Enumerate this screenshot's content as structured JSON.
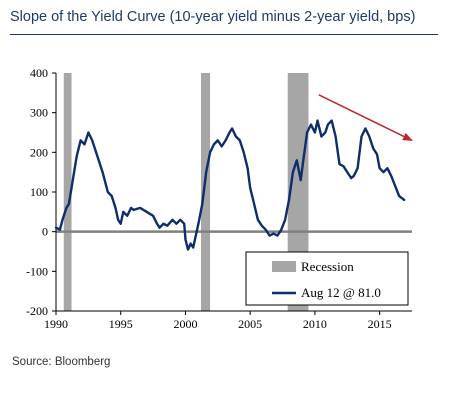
{
  "header": {
    "title": "Slope of the Yield Curve (10-year yield minus 2-year yield, bps)"
  },
  "footer": {
    "source": "Source: Bloomberg"
  },
  "chart_data": {
    "type": "line",
    "title": "Slope of the Yield Curve (10-year yield minus 2-year yield, bps)",
    "xlabel": "",
    "ylabel": "",
    "xlim": [
      1990,
      2017.5
    ],
    "ylim": [
      -200,
      400
    ],
    "x_ticks": [
      "1990",
      "1995",
      "2000",
      "2005",
      "2010",
      "2015"
    ],
    "y_ticks": [
      "400",
      "300",
      "200",
      "100",
      "0",
      "-100",
      "-200"
    ],
    "grid": false,
    "legend_position": "bottom-right",
    "colors": {
      "series": "#0f2d6b",
      "recession": "#a6a6a6",
      "arrow": "#c0282d",
      "zero_line": "#808080"
    },
    "recessions": [
      {
        "start": 1990.6,
        "end": 1991.2
      },
      {
        "start": 2001.2,
        "end": 2001.9
      },
      {
        "start": 2007.9,
        "end": 2009.5
      }
    ],
    "legend": {
      "recession_label": "Recession",
      "series_label": "Aug 12 @ 81.0"
    },
    "trend_arrow": {
      "x_start": 2010.3,
      "y_start": 345,
      "x_end": 2017.5,
      "y_end": 230
    },
    "series": [
      {
        "name": "Aug 12 @ 81.0",
        "points": [
          [
            1990.0,
            10
          ],
          [
            1990.3,
            5
          ],
          [
            1990.5,
            30
          ],
          [
            1990.8,
            60
          ],
          [
            1991.0,
            70
          ],
          [
            1991.3,
            130
          ],
          [
            1991.6,
            190
          ],
          [
            1991.9,
            230
          ],
          [
            1992.2,
            220
          ],
          [
            1992.5,
            250
          ],
          [
            1992.8,
            230
          ],
          [
            1993.0,
            210
          ],
          [
            1993.3,
            180
          ],
          [
            1993.6,
            150
          ],
          [
            1994.0,
            100
          ],
          [
            1994.3,
            90
          ],
          [
            1994.6,
            60
          ],
          [
            1994.8,
            30
          ],
          [
            1995.0,
            20
          ],
          [
            1995.2,
            50
          ],
          [
            1995.5,
            40
          ],
          [
            1995.8,
            60
          ],
          [
            1996.0,
            55
          ],
          [
            1996.5,
            60
          ],
          [
            1997.0,
            50
          ],
          [
            1997.5,
            40
          ],
          [
            1997.8,
            20
          ],
          [
            1998.0,
            10
          ],
          [
            1998.3,
            20
          ],
          [
            1998.6,
            15
          ],
          [
            1999.0,
            30
          ],
          [
            1999.3,
            20
          ],
          [
            1999.6,
            30
          ],
          [
            1999.9,
            20
          ],
          [
            2000.0,
            -20
          ],
          [
            2000.2,
            -45
          ],
          [
            2000.4,
            -30
          ],
          [
            2000.6,
            -40
          ],
          [
            2000.8,
            -10
          ],
          [
            2001.0,
            20
          ],
          [
            2001.3,
            70
          ],
          [
            2001.6,
            150
          ],
          [
            2001.9,
            200
          ],
          [
            2002.2,
            220
          ],
          [
            2002.5,
            230
          ],
          [
            2002.8,
            215
          ],
          [
            2003.1,
            230
          ],
          [
            2003.4,
            250
          ],
          [
            2003.6,
            260
          ],
          [
            2003.9,
            240
          ],
          [
            2004.2,
            230
          ],
          [
            2004.5,
            200
          ],
          [
            2004.8,
            160
          ],
          [
            2005.0,
            110
          ],
          [
            2005.3,
            70
          ],
          [
            2005.6,
            30
          ],
          [
            2005.9,
            15
          ],
          [
            2006.2,
            5
          ],
          [
            2006.5,
            -10
          ],
          [
            2006.8,
            -5
          ],
          [
            2007.1,
            -10
          ],
          [
            2007.4,
            5
          ],
          [
            2007.7,
            30
          ],
          [
            2008.0,
            80
          ],
          [
            2008.3,
            150
          ],
          [
            2008.6,
            180
          ],
          [
            2008.9,
            130
          ],
          [
            2009.1,
            180
          ],
          [
            2009.4,
            250
          ],
          [
            2009.7,
            270
          ],
          [
            2010.0,
            250
          ],
          [
            2010.2,
            280
          ],
          [
            2010.5,
            240
          ],
          [
            2010.8,
            250
          ],
          [
            2011.0,
            270
          ],
          [
            2011.3,
            280
          ],
          [
            2011.6,
            240
          ],
          [
            2011.9,
            170
          ],
          [
            2012.2,
            165
          ],
          [
            2012.5,
            150
          ],
          [
            2012.8,
            135
          ],
          [
            2013.0,
            140
          ],
          [
            2013.3,
            160
          ],
          [
            2013.6,
            240
          ],
          [
            2013.9,
            260
          ],
          [
            2014.2,
            240
          ],
          [
            2014.5,
            210
          ],
          [
            2014.8,
            195
          ],
          [
            2015.0,
            160
          ],
          [
            2015.3,
            150
          ],
          [
            2015.6,
            160
          ],
          [
            2015.9,
            140
          ],
          [
            2016.2,
            115
          ],
          [
            2016.5,
            90
          ],
          [
            2016.7,
            85
          ],
          [
            2016.9,
            80
          ]
        ]
      }
    ]
  }
}
